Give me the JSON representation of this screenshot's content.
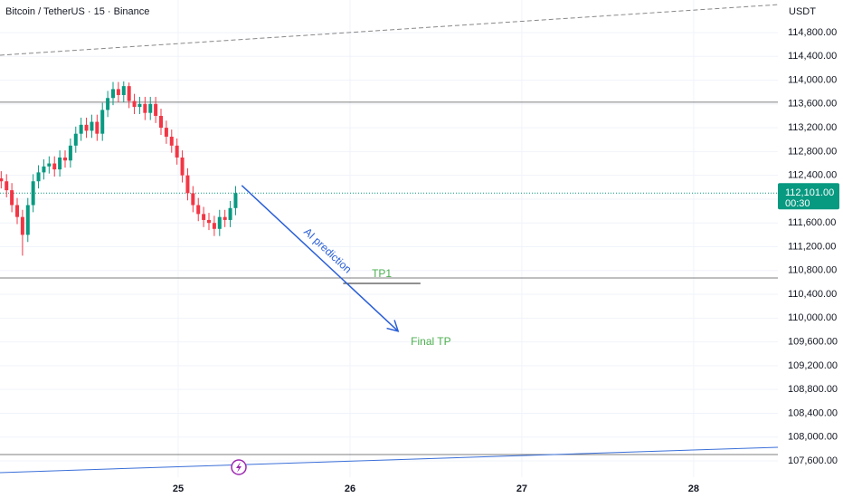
{
  "chart_data": {
    "type": "candlestick",
    "title": "Bitcoin / TetherUS · 15 · Binance",
    "y_axis_label": "USDT",
    "x": [
      23.97,
      24.001,
      24.032,
      24.063,
      24.094,
      24.125,
      24.156,
      24.187,
      24.218,
      24.249,
      24.28,
      24.311,
      24.342,
      24.373,
      24.404,
      24.435,
      24.466,
      24.497,
      24.528,
      24.559,
      24.59,
      24.621,
      24.652,
      24.683,
      24.714,
      24.745,
      24.776,
      24.807,
      24.838,
      24.869,
      24.9,
      24.931,
      24.962,
      24.993,
      25.024,
      25.055,
      25.086,
      25.117,
      25.148,
      25.179,
      25.21,
      25.241,
      25.272,
      25.303,
      25.334
    ],
    "open": [
      112350,
      112300,
      112150,
      111900,
      111700,
      111400,
      111900,
      112300,
      112450,
      112550,
      112600,
      112500,
      112700,
      112650,
      112900,
      113100,
      113250,
      113150,
      113300,
      113100,
      113500,
      113700,
      113850,
      113750,
      113900,
      113650,
      113550,
      113600,
      113450,
      113600,
      113400,
      113200,
      113050,
      112900,
      112700,
      112400,
      112100,
      111900,
      111750,
      111650,
      111600,
      111500,
      111700,
      111650,
      111850
    ],
    "high": [
      112470,
      112420,
      112270,
      112020,
      111820,
      112020,
      112420,
      112570,
      112670,
      112720,
      112720,
      112820,
      112820,
      113020,
      113220,
      113370,
      113370,
      113420,
      113420,
      113620,
      113820,
      113970,
      113970,
      113980,
      113960,
      113770,
      113720,
      113720,
      113720,
      113720,
      113520,
      113320,
      113170,
      113020,
      112820,
      112520,
      112220,
      112020,
      111870,
      111770,
      111720,
      111820,
      111820,
      111970,
      112220
    ],
    "low": [
      112180,
      112030,
      111780,
      111580,
      111050,
      111280,
      111780,
      112180,
      112330,
      112430,
      112380,
      112380,
      112530,
      112530,
      112780,
      112980,
      113030,
      113030,
      112980,
      112980,
      113380,
      113580,
      113630,
      113630,
      113530,
      113430,
      113430,
      113330,
      113330,
      113280,
      113080,
      112930,
      112780,
      112580,
      112280,
      111980,
      111780,
      111630,
      111530,
      111480,
      111380,
      111380,
      111530,
      111530,
      111730
    ],
    "close": [
      112300,
      112150,
      111900,
      111700,
      111400,
      111900,
      112300,
      112450,
      112550,
      112600,
      112500,
      112700,
      112650,
      112900,
      113100,
      113250,
      113150,
      113300,
      113100,
      113500,
      113700,
      113850,
      113750,
      113900,
      113650,
      113550,
      113600,
      113450,
      113600,
      113400,
      113200,
      113050,
      112900,
      112700,
      112400,
      112100,
      111900,
      111750,
      111650,
      111600,
      111500,
      111700,
      111650,
      111850,
      112101
    ],
    "up_color": "#089981",
    "down_color": "#f23645",
    "xlim": [
      23.963,
      28.49
    ],
    "xticks": [
      25,
      26,
      27,
      28
    ],
    "ylim": [
      107326,
      115348
    ],
    "yticks": [
      {
        "value": 114800,
        "label": "114,800.00"
      },
      {
        "value": 114400,
        "label": "114,400.00"
      },
      {
        "value": 114000,
        "label": "114,000.00"
      },
      {
        "value": 113600,
        "label": "113,600.00"
      },
      {
        "value": 113200,
        "label": "113,200.00"
      },
      {
        "value": 112800,
        "label": "112,800.00"
      },
      {
        "value": 112400,
        "label": "112,400.00"
      },
      {
        "value": 112000,
        "label": "112,000.00"
      },
      {
        "value": 111600,
        "label": "111,600.00"
      },
      {
        "value": 111200,
        "label": "111,200.00"
      },
      {
        "value": 110800,
        "label": "110,800.00"
      },
      {
        "value": 110400,
        "label": "110,400.00"
      },
      {
        "value": 110000,
        "label": "110,000.00"
      },
      {
        "value": 109600,
        "label": "109,600.00"
      },
      {
        "value": 109200,
        "label": "109,200.00"
      },
      {
        "value": 108800,
        "label": "108,800.00"
      },
      {
        "value": 108400,
        "label": "108,400.00"
      },
      {
        "value": 108000,
        "label": "108,000.00"
      },
      {
        "value": 107600,
        "label": "107,600.00"
      }
    ],
    "grid": true,
    "current_price": {
      "value": 112101,
      "label": "112,101.00",
      "countdown": "00:30",
      "color": "#089981"
    },
    "levels": [
      113630,
      110675,
      107707
    ],
    "trendlines": [
      {
        "x": [
          23.963,
          28.49
        ],
        "y": [
          114420,
          115270
        ],
        "color": "#888888",
        "dashed": true
      },
      {
        "x": [
          23.963,
          28.49
        ],
        "y": [
          107403,
          107829
        ],
        "color": "#3a6fd8",
        "dashed": false
      }
    ],
    "prediction": {
      "label": "AI prediction",
      "color": "#2a5fd6",
      "x": [
        25.37,
        26.28
      ],
      "y": [
        112230,
        109780
      ],
      "end_label": "Final TP"
    },
    "target": {
      "label": "TP1",
      "value": 110584,
      "x": [
        25.96,
        26.41
      ],
      "color": "#4caf50"
    }
  }
}
